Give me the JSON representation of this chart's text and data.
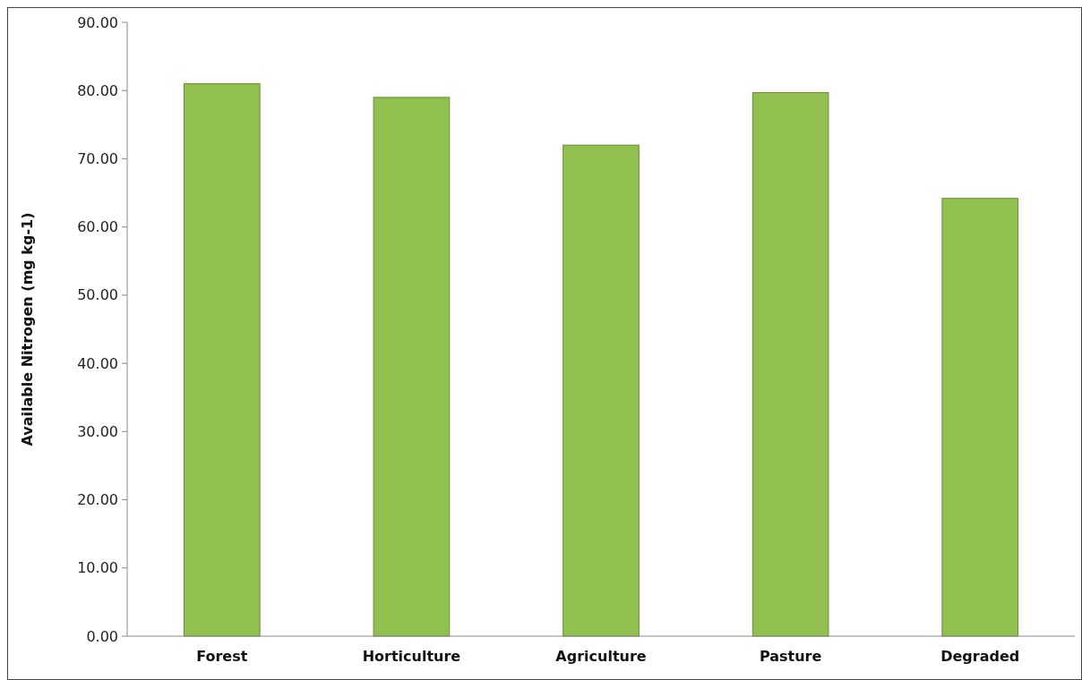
{
  "chart_data": {
    "type": "bar",
    "ylabel": "Available Nitrogen (mg kg-1)",
    "categories": [
      "Forest",
      "Horticulture",
      "Agriculture",
      "Pasture",
      "Degraded"
    ],
    "values": [
      81.0,
      79.0,
      72.0,
      79.7,
      64.2
    ],
    "color": "#92c050",
    "ylim": [
      0,
      90
    ],
    "yticks": [
      {
        "value": 0,
        "label": "0.00"
      },
      {
        "value": 10,
        "label": "10.00"
      },
      {
        "value": 20,
        "label": "20.00"
      },
      {
        "value": 30,
        "label": "30.00"
      },
      {
        "value": 40,
        "label": "40.00"
      },
      {
        "value": 50,
        "label": "50.00"
      },
      {
        "value": 60,
        "label": "60.00"
      },
      {
        "value": 70,
        "label": "70.00"
      },
      {
        "value": 80,
        "label": "80.00"
      },
      {
        "value": 90,
        "label": "90.00"
      }
    ]
  }
}
